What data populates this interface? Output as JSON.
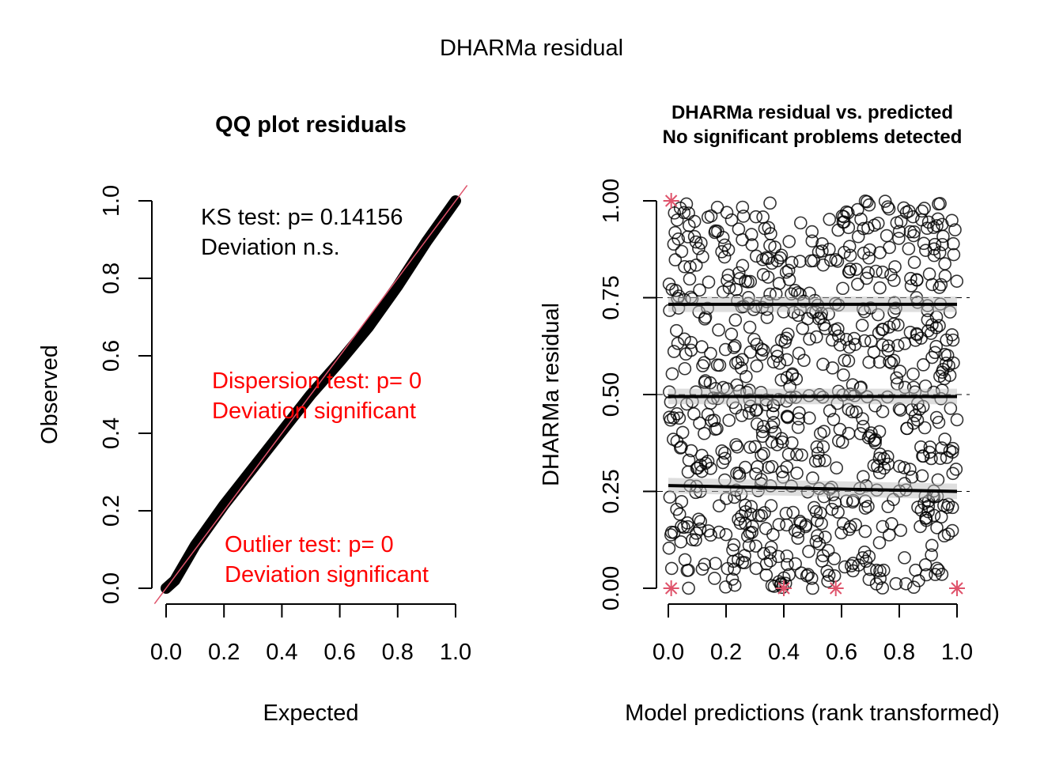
{
  "figure_title": "DHARMa residual",
  "chart_data": [
    {
      "type": "line",
      "title": "QQ plot residuals",
      "xlabel": "Expected",
      "ylabel": "Observed",
      "xlim": [
        0,
        1
      ],
      "ylim": [
        0,
        1
      ],
      "xticks": [
        "0.0",
        "0.2",
        "0.4",
        "0.6",
        "0.8",
        "1.0"
      ],
      "yticks": [
        "0.0",
        "0.2",
        "0.4",
        "0.6",
        "0.8",
        "1.0"
      ],
      "qq_points": [
        [
          0,
          0
        ],
        [
          0.03,
          0.02
        ],
        [
          0.1,
          0.11
        ],
        [
          0.2,
          0.215
        ],
        [
          0.3,
          0.31
        ],
        [
          0.4,
          0.405
        ],
        [
          0.5,
          0.5
        ],
        [
          0.6,
          0.585
        ],
        [
          0.7,
          0.675
        ],
        [
          0.8,
          0.78
        ],
        [
          0.9,
          0.895
        ],
        [
          1.0,
          1.0
        ]
      ],
      "reference_line_color": "#df536b",
      "annotations": [
        {
          "lines": [
            "KS test: p= 0.14156",
            "Deviation  n.s."
          ],
          "color": "#000000"
        },
        {
          "lines": [
            "Dispersion test: p= 0",
            "Deviation  significant"
          ],
          "color": "#ff0000"
        },
        {
          "lines": [
            "Outlier test: p= 0",
            "Deviation  significant"
          ],
          "color": "#ff0000"
        }
      ]
    },
    {
      "type": "scatter",
      "title": [
        "DHARMa residual vs. predicted",
        "No significant problems detected"
      ],
      "xlabel": "Model predictions (rank transformed)",
      "ylabel": "DHARMa residual",
      "xlim": [
        0,
        1
      ],
      "ylim": [
        0,
        1
      ],
      "xticks": [
        "0.0",
        "0.2",
        "0.4",
        "0.6",
        "0.8",
        "1.0"
      ],
      "yticks": [
        "0.00",
        "0.25",
        "0.50",
        "0.75",
        "1.00"
      ],
      "reference_lines": [
        0.25,
        0.5,
        0.75
      ],
      "quantile_fits": [
        {
          "quantile": 0.25,
          "start": 0.265,
          "end": 0.25
        },
        {
          "quantile": 0.5,
          "start": 0.495,
          "end": 0.495
        },
        {
          "quantile": 0.75,
          "start": 0.733,
          "end": 0.733
        }
      ],
      "outliers": [
        [
          0.01,
          1.0
        ],
        [
          0.01,
          0.0
        ],
        [
          0.4,
          0.0
        ],
        [
          0.58,
          0.0
        ],
        [
          1.0,
          0.0
        ]
      ],
      "outlier_color": "#df536b"
    }
  ]
}
